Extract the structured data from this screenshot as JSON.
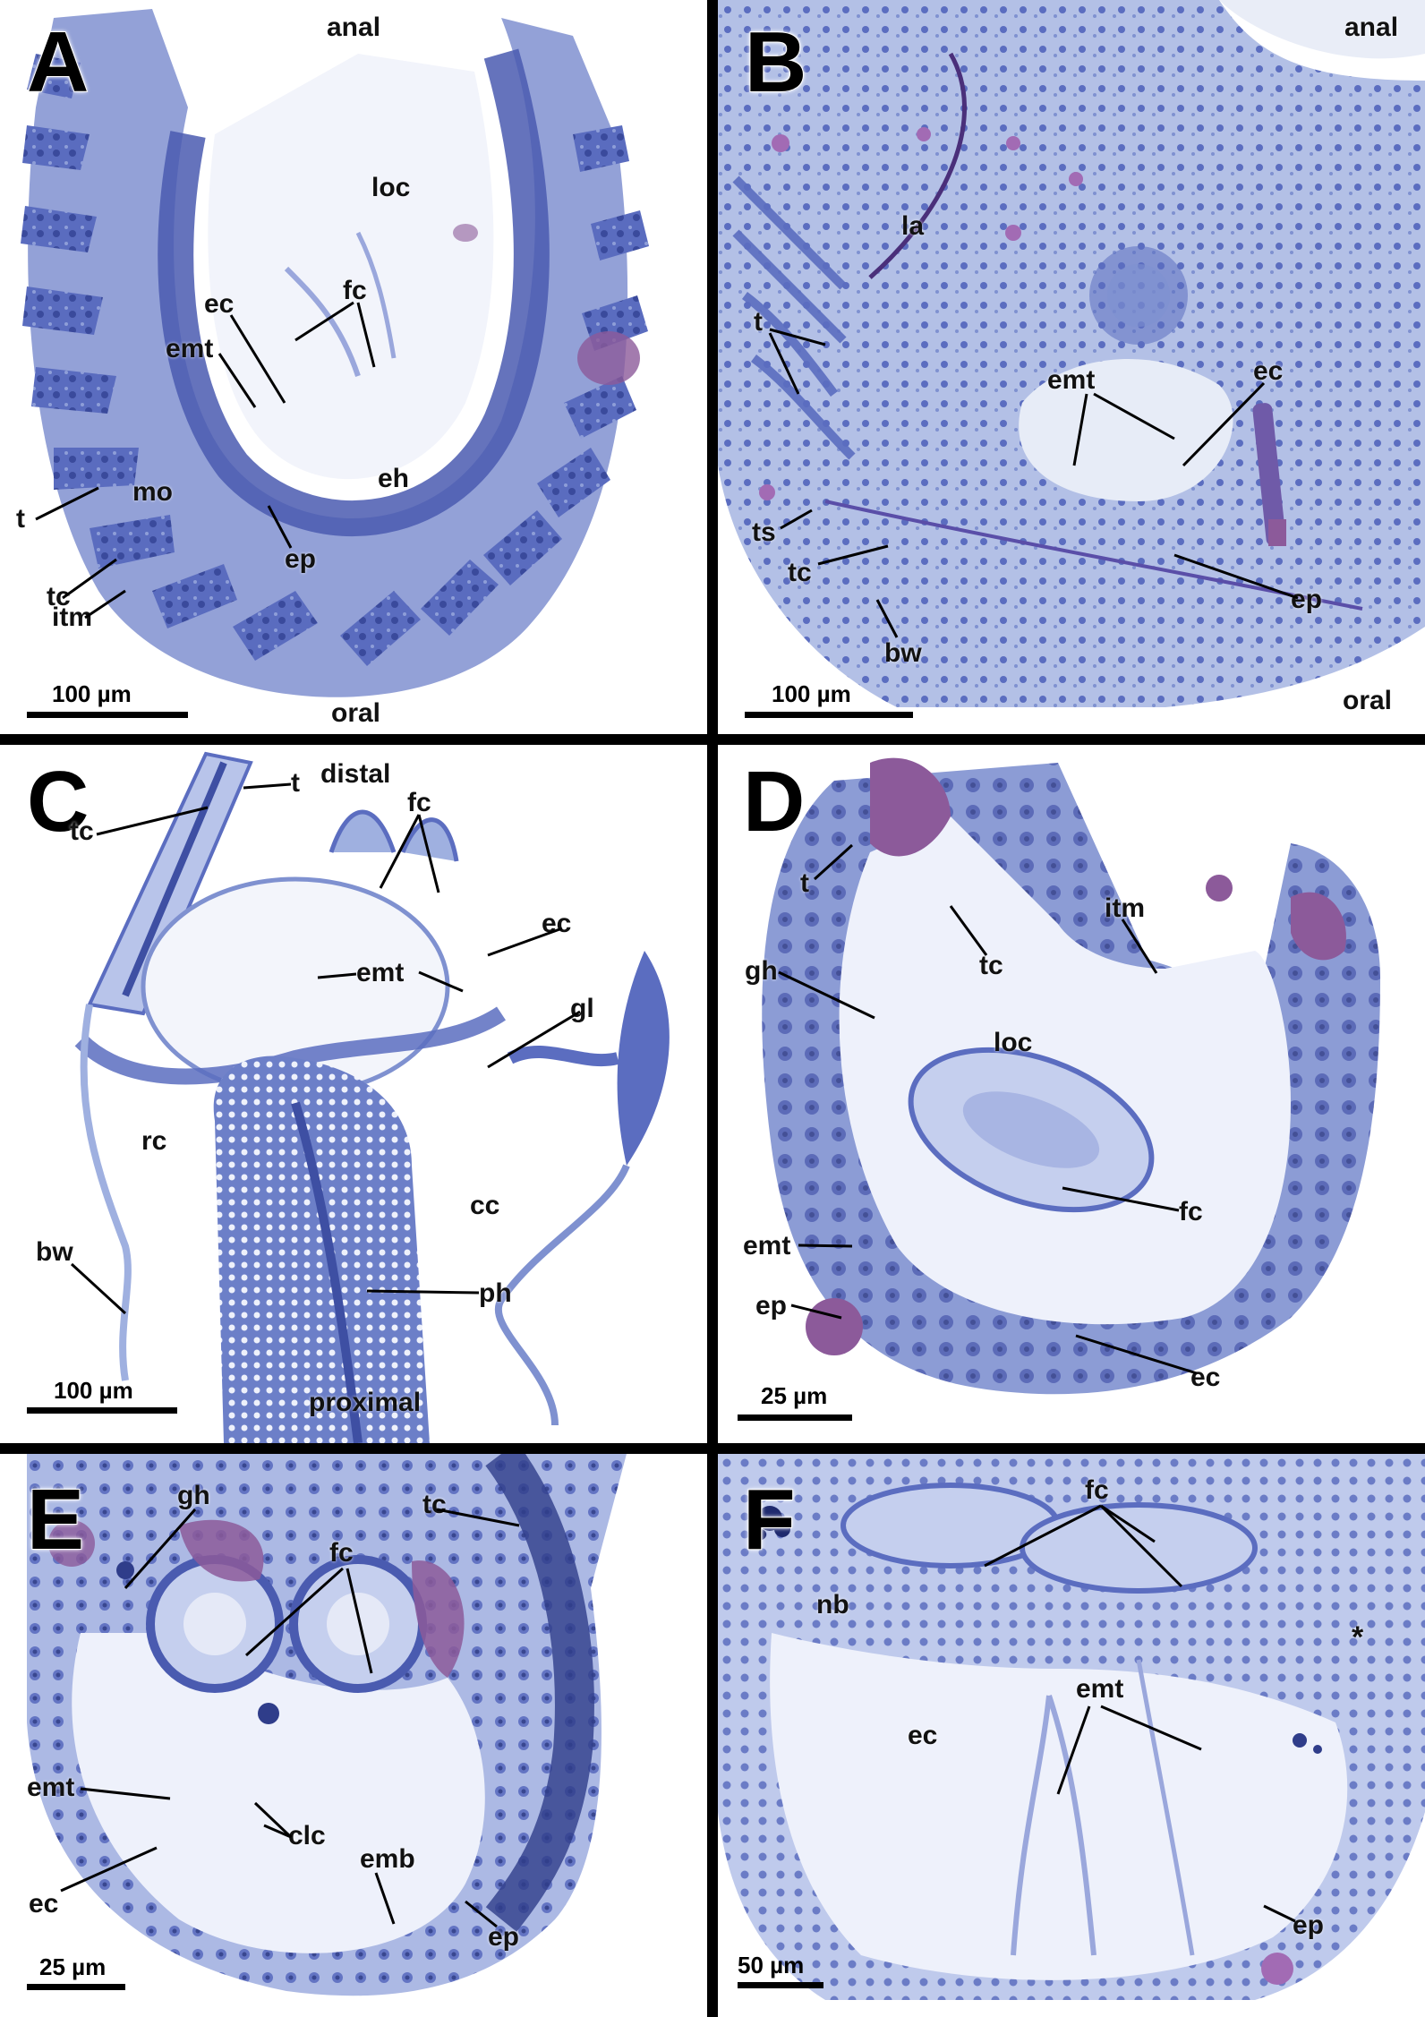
{
  "panels": {
    "A": {
      "letter": "A",
      "labels": {
        "anal": "anal",
        "loc": "loc",
        "ec": "ec",
        "fc": "fc",
        "emt": "emt",
        "eh": "eh",
        "t": "t",
        "mo": "mo",
        "ep": "ep",
        "tc": "tc",
        "itm": "itm",
        "oral": "oral"
      },
      "scale": "100 µm"
    },
    "B": {
      "letter": "B",
      "labels": {
        "anal": "anal",
        "la": "la",
        "t": "t",
        "emt": "emt",
        "ec": "ec",
        "ts": "ts",
        "tc": "tc",
        "bw": "bw",
        "ep": "ep",
        "oral": "oral"
      },
      "scale": "100 µm"
    },
    "C": {
      "letter": "C",
      "labels": {
        "t": "t",
        "tc": "tc",
        "distal": "distal",
        "fc": "fc",
        "ec": "ec",
        "emt": "emt",
        "gl": "gl",
        "rc": "rc",
        "cc": "cc",
        "bw": "bw",
        "ph": "ph",
        "proximal": "proximal"
      },
      "scale": "100 µm"
    },
    "D": {
      "letter": "D",
      "labels": {
        "t": "t",
        "tc": "tc",
        "itm": "itm",
        "gh": "gh",
        "loc": "loc",
        "fc": "fc",
        "emt": "emt",
        "ep": "ep",
        "ec": "ec"
      },
      "scale": "25 µm"
    },
    "E": {
      "letter": "E",
      "labels": {
        "gh": "gh",
        "tc": "tc",
        "fc": "fc",
        "emt": "emt",
        "clc": "clc",
        "emb": "emb",
        "ec": "ec",
        "ep": "ep"
      },
      "scale": "25 µm"
    },
    "F": {
      "letter": "F",
      "labels": {
        "fc": "fc",
        "nb": "nb",
        "star": "*",
        "emt": "emt",
        "ec": "ec",
        "ep": "ep"
      },
      "scale": "50 µm"
    }
  },
  "colors": {
    "background": "#ffffff",
    "divider": "#000000",
    "tissue_light": "#c9d3ec",
    "tissue_mid": "#7f91d0",
    "tissue_dark": "#3e4fa3",
    "magenta_stain": "#8c5a9a",
    "lumen": "#f3f5fb"
  }
}
